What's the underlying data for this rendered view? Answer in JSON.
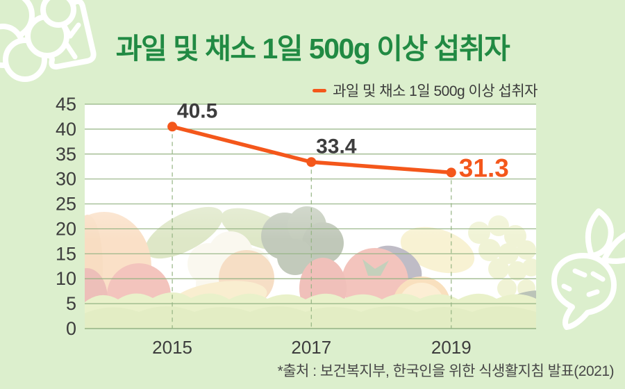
{
  "title": "과일 및 채소 1일 500g 이상 섭취자",
  "legend": {
    "label": "과일 및 채소 1일 500g 이상 섭취자"
  },
  "source_note": "*출처 : 보건복지부, 한국인을 위한 식생활지침 발표(2021)",
  "colors": {
    "background": "#dcefcd",
    "title_green": "#218a43",
    "line_orange": "#f4571b",
    "grid_green": "#94b383",
    "text_dark": "#3d3d3d"
  },
  "chart_data": {
    "type": "line",
    "categories": [
      "2015",
      "2017",
      "2019"
    ],
    "series": [
      {
        "name": "과일 및 채소 1일 500g 이상 섭취자",
        "values": [
          40.5,
          33.4,
          31.3
        ]
      }
    ],
    "value_labels": [
      "40.5",
      "33.4",
      "31.3"
    ],
    "title": "과일 및 채소 1일 500g 이상 섭취자",
    "xlabel": "",
    "ylabel": "",
    "ylim": [
      0,
      45
    ],
    "ytick_step": 5,
    "grid": true,
    "legend_position": "top-right",
    "highlight_last_point": true,
    "point_guides": "dashed-vertical"
  }
}
